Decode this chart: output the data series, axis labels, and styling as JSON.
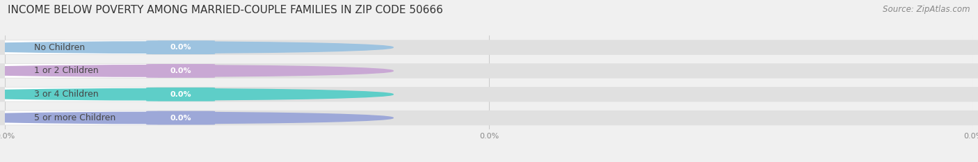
{
  "title": "INCOME BELOW POVERTY AMONG MARRIED-COUPLE FAMILIES IN ZIP CODE 50666",
  "source": "Source: ZipAtlas.com",
  "categories": [
    "No Children",
    "1 or 2 Children",
    "3 or 4 Children",
    "5 or more Children"
  ],
  "values": [
    0.0,
    0.0,
    0.0,
    0.0
  ],
  "bar_colors": [
    "#9dc3e0",
    "#c9a8d4",
    "#5ecec8",
    "#9da8d8"
  ],
  "background_color": "#f0f0f0",
  "bar_bg_color": "#e0e0e0",
  "white_label_bg": "#ffffff",
  "title_color": "#333333",
  "source_color": "#888888",
  "label_text_color": "#444444",
  "value_text_color": "#ffffff",
  "tick_color": "#888888",
  "grid_color": "#cccccc",
  "title_fontsize": 11,
  "source_fontsize": 8.5,
  "label_fontsize": 9,
  "value_fontsize": 8,
  "tick_fontsize": 8,
  "figsize": [
    14.06,
    2.33
  ],
  "dpi": 100
}
